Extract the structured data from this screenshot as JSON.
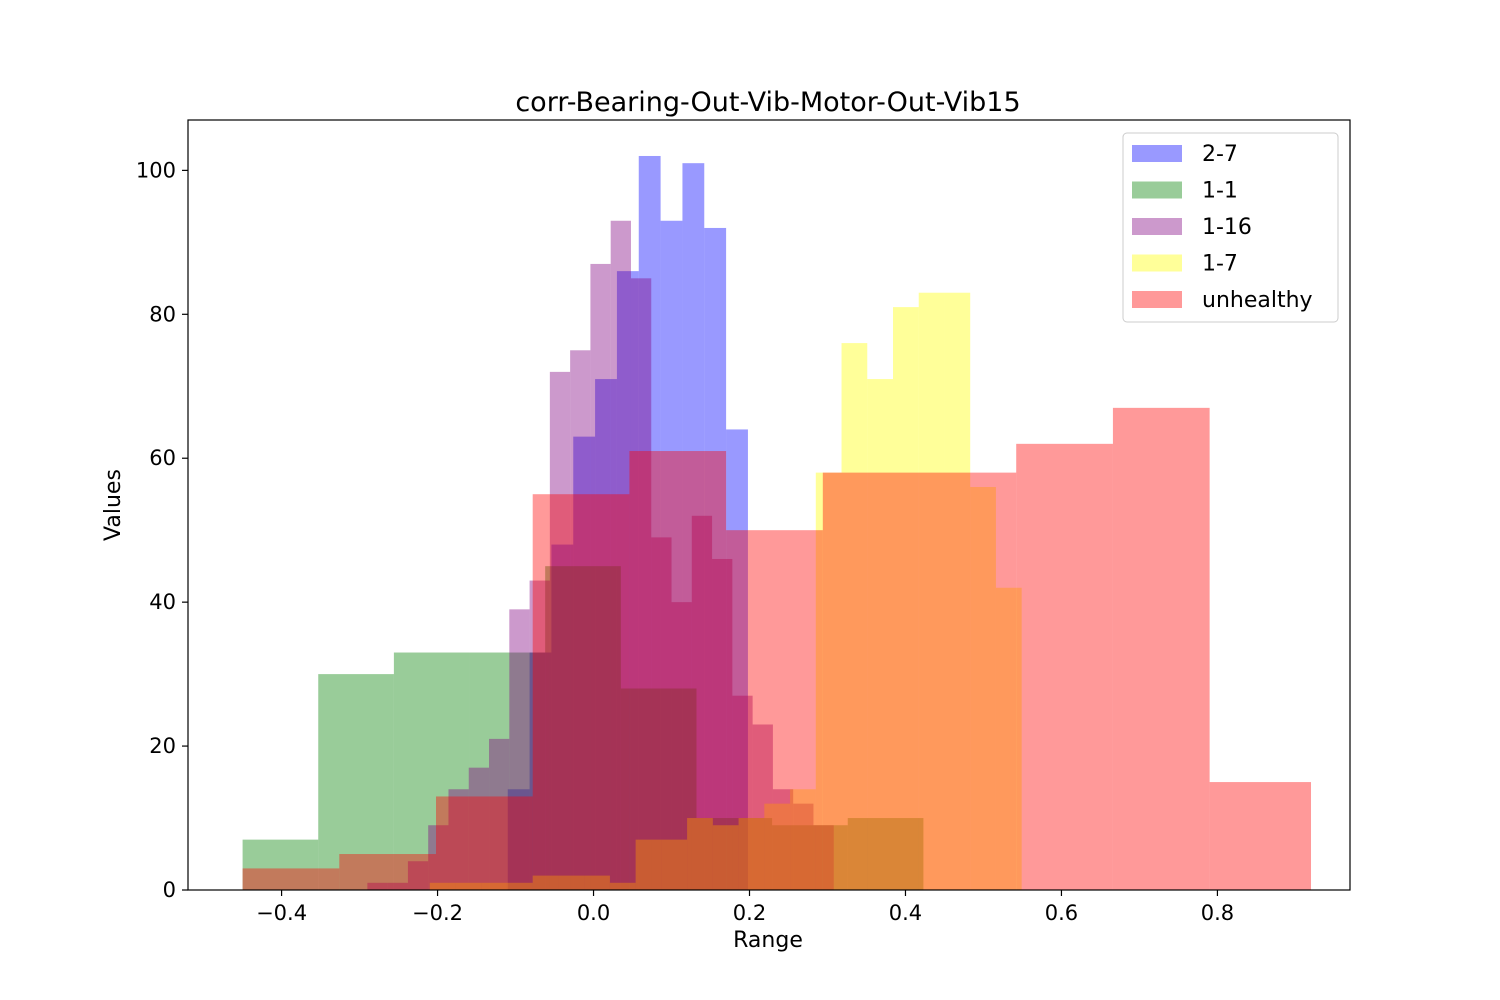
{
  "chart_data": {
    "type": "histogram",
    "title": "corr-Bearing-Out-Vib-Motor-Out-Vib15",
    "xlabel": "Range",
    "ylabel": "Values",
    "xlim": [
      -0.52,
      0.97
    ],
    "ylim": [
      0,
      107
    ],
    "xticks": [
      {
        "value": -0.4,
        "label": "−0.4"
      },
      {
        "value": -0.2,
        "label": "−0.2"
      },
      {
        "value": 0.0,
        "label": "0.0"
      },
      {
        "value": 0.2,
        "label": "0.2"
      },
      {
        "value": 0.4,
        "label": "0.4"
      },
      {
        "value": 0.6,
        "label": "0.6"
      },
      {
        "value": 0.8,
        "label": "0.8"
      }
    ],
    "yticks": [
      {
        "value": 0,
        "label": "0"
      },
      {
        "value": 20,
        "label": "20"
      },
      {
        "value": 40,
        "label": "40"
      },
      {
        "value": 60,
        "label": "60"
      },
      {
        "value": 80,
        "label": "80"
      },
      {
        "value": 100,
        "label": "100"
      }
    ],
    "opacity": 0.4,
    "legend_position": "upper right",
    "series": [
      {
        "name": "2-7",
        "color": "#0000ff",
        "edges": [
          -0.11,
          -0.082,
          -0.054,
          -0.026,
          0.002,
          0.03,
          0.058,
          0.086,
          0.114,
          0.142,
          0.17,
          0.198
        ],
        "values": [
          14,
          33,
          48,
          63,
          71,
          86,
          102,
          93,
          101,
          92,
          64,
          50
        ]
      },
      {
        "name": "1-1",
        "color": "#008000",
        "edges": [
          -0.45,
          -0.353,
          -0.256,
          -0.159,
          -0.062,
          0.035,
          0.132,
          0.229,
          0.326,
          0.423
        ],
        "values": [
          7,
          30,
          33,
          33,
          45,
          28,
          10,
          9,
          10
        ]
      },
      {
        "name": "1-16",
        "color": "#800080",
        "edges": [
          -0.29,
          -0.264,
          -0.238,
          -0.212,
          -0.186,
          -0.16,
          -0.134,
          -0.108,
          -0.082,
          -0.056,
          -0.03,
          -0.004,
          0.022,
          0.048,
          0.074,
          0.1,
          0.126,
          0.152,
          0.178,
          0.204,
          0.23,
          0.256,
          0.282,
          0.308
        ],
        "values": [
          1,
          1,
          4,
          9,
          14,
          17,
          21,
          39,
          43,
          72,
          75,
          87,
          93,
          85,
          49,
          40,
          52,
          46,
          27,
          23,
          14,
          12,
          9
        ]
      },
      {
        "name": "1-7",
        "color": "#ffff00",
        "edges": [
          -0.21,
          -0.177,
          -0.144,
          -0.111,
          -0.078,
          -0.045,
          -0.012,
          0.021,
          0.054,
          0.087,
          0.12,
          0.153,
          0.186,
          0.219,
          0.252,
          0.285,
          0.318,
          0.351,
          0.384,
          0.417,
          0.45,
          0.483,
          0.516,
          0.549
        ],
        "values": [
          1,
          1,
          1,
          1,
          2,
          2,
          2,
          1,
          7,
          7,
          10,
          9,
          10,
          12,
          14,
          58,
          76,
          71,
          81,
          83,
          83,
          56,
          42
        ]
      },
      {
        "name": "unhealthy",
        "color": "#ff0000",
        "edges": [
          -0.45,
          -0.326,
          -0.202,
          -0.078,
          0.046,
          0.17,
          0.294,
          0.418,
          0.542,
          0.666,
          0.79,
          0.92
        ],
        "values": [
          3,
          5,
          13,
          55,
          61,
          50,
          58,
          58,
          62,
          67,
          15
        ]
      }
    ]
  }
}
